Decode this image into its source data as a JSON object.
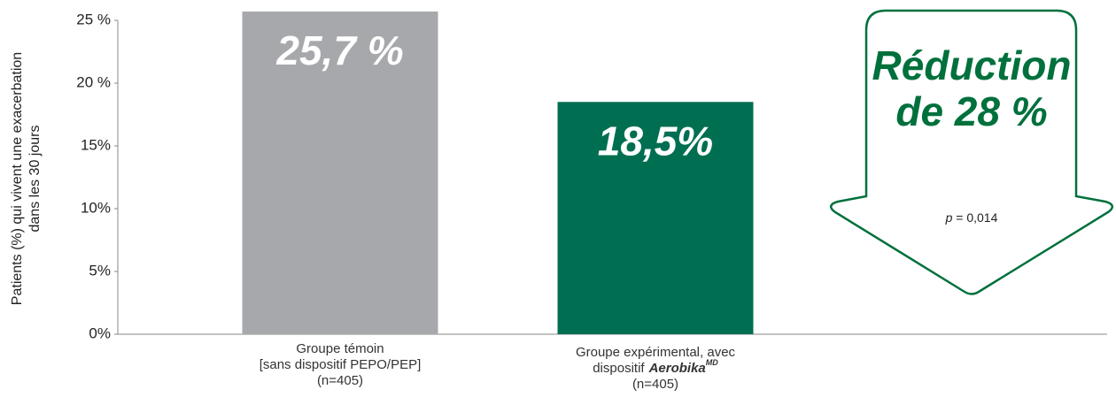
{
  "chart_data": {
    "type": "bar",
    "y_label": [
      "Patients (%) qui vivent une exacerbation",
      "dans les 30 jours"
    ],
    "categories": [
      [
        "Groupe témoin",
        "[sans dispositif PEPO/PEP]",
        "(n=405)"
      ],
      [
        "Groupe expérimental, avec",
        [
          "dispositif",
          "Aerobika",
          "MD"
        ],
        "(n=405)"
      ]
    ],
    "values": [
      25.7,
      18.5
    ],
    "value_labels": [
      "25,7 %",
      "18,5%"
    ],
    "colors": [
      "#a7a8ab",
      "#006f51"
    ],
    "ylim": [
      0,
      25
    ],
    "yticks": [
      {
        "value": 0,
        "label": "0%"
      },
      {
        "value": 5,
        "label": "5%"
      },
      {
        "value": 10,
        "label": "10%"
      },
      {
        "value": 15,
        "label": "15%"
      },
      {
        "value": 20,
        "label": "20 %"
      },
      {
        "value": 25,
        "label": "25 %"
      }
    ],
    "annotation": {
      "lines": [
        "Réduction",
        "de 28 %"
      ],
      "p_symbol": "p",
      "p_text": "= 0,014"
    }
  }
}
